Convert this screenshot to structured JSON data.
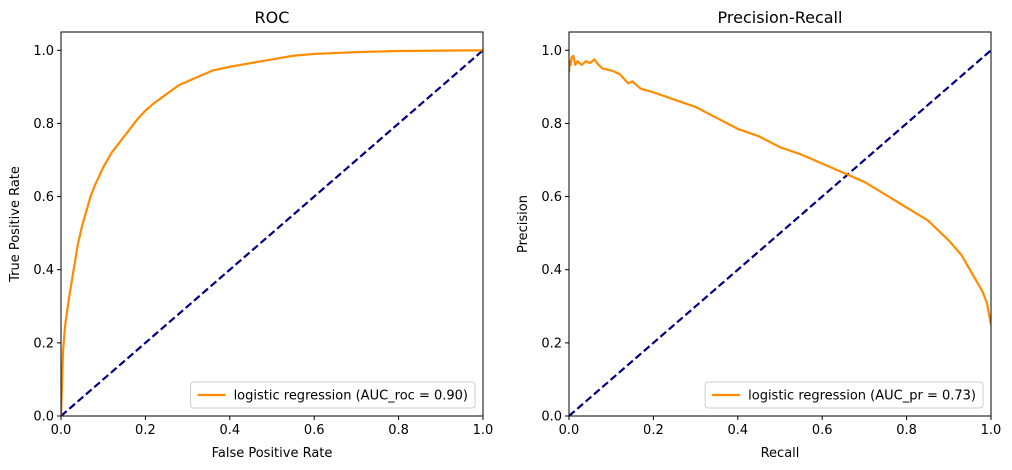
{
  "chart_data": [
    {
      "type": "line",
      "title": "ROC",
      "xlabel": "False Positive Rate",
      "ylabel": "True Positive Rate",
      "xlim": [
        0.0,
        1.0
      ],
      "ylim": [
        0.0,
        1.05
      ],
      "xticks": [
        "0.0",
        "0.2",
        "0.4",
        "0.6",
        "0.8",
        "1.0"
      ],
      "yticks": [
        "0.0",
        "0.2",
        "0.4",
        "0.6",
        "0.8",
        "1.0"
      ],
      "grid": false,
      "legend_position": "lower-right",
      "series": [
        {
          "name": "logistic regression (AUC_roc = 0.90)",
          "color": "#ff8c00",
          "style": "solid",
          "x": [
            0.0,
            0.005,
            0.01,
            0.02,
            0.03,
            0.04,
            0.05,
            0.06,
            0.07,
            0.08,
            0.1,
            0.12,
            0.14,
            0.16,
            0.18,
            0.2,
            0.22,
            0.25,
            0.28,
            0.3,
            0.33,
            0.36,
            0.4,
            0.45,
            0.5,
            0.55,
            0.6,
            0.7,
            0.8,
            0.9,
            1.0
          ],
          "y": [
            0.0,
            0.18,
            0.25,
            0.33,
            0.4,
            0.47,
            0.52,
            0.56,
            0.6,
            0.63,
            0.68,
            0.72,
            0.75,
            0.78,
            0.81,
            0.835,
            0.855,
            0.88,
            0.905,
            0.915,
            0.93,
            0.945,
            0.955,
            0.965,
            0.975,
            0.985,
            0.99,
            0.995,
            0.998,
            0.999,
            1.0
          ]
        },
        {
          "name": "",
          "color": "#000080",
          "style": "dashed",
          "x": [
            0.0,
            1.0
          ],
          "y": [
            0.0,
            1.0
          ]
        }
      ]
    },
    {
      "type": "line",
      "title": "Precision-Recall",
      "xlabel": "Recall",
      "ylabel": "Precision",
      "xlim": [
        0.0,
        1.0
      ],
      "ylim": [
        0.0,
        1.05
      ],
      "xticks": [
        "0.0",
        "0.2",
        "0.4",
        "0.6",
        "0.8",
        "1.0"
      ],
      "yticks": [
        "0.0",
        "0.2",
        "0.4",
        "0.6",
        "0.8",
        "1.0"
      ],
      "grid": false,
      "legend_position": "lower-right",
      "series": [
        {
          "name": "logistic regression (AUC_pr = 0.73)",
          "color": "#ff8c00",
          "style": "solid",
          "x": [
            0.0,
            0.002,
            0.004,
            0.006,
            0.01,
            0.015,
            0.02,
            0.03,
            0.04,
            0.05,
            0.06,
            0.07,
            0.08,
            0.1,
            0.12,
            0.14,
            0.15,
            0.17,
            0.2,
            0.25,
            0.3,
            0.35,
            0.4,
            0.45,
            0.5,
            0.55,
            0.6,
            0.65,
            0.7,
            0.75,
            0.8,
            0.85,
            0.9,
            0.93,
            0.95,
            0.97,
            0.98,
            0.99,
            0.995,
            1.0
          ],
          "y": [
            0.94,
            0.97,
            0.96,
            0.98,
            0.985,
            0.96,
            0.97,
            0.96,
            0.97,
            0.965,
            0.975,
            0.96,
            0.95,
            0.945,
            0.935,
            0.91,
            0.915,
            0.895,
            0.885,
            0.865,
            0.845,
            0.815,
            0.785,
            0.765,
            0.735,
            0.715,
            0.69,
            0.665,
            0.64,
            0.605,
            0.57,
            0.535,
            0.48,
            0.44,
            0.4,
            0.36,
            0.34,
            0.31,
            0.28,
            0.25
          ]
        },
        {
          "name": "",
          "color": "#000080",
          "style": "dashed",
          "x": [
            0.0,
            1.0
          ],
          "y": [
            0.0,
            1.0
          ]
        }
      ]
    }
  ]
}
